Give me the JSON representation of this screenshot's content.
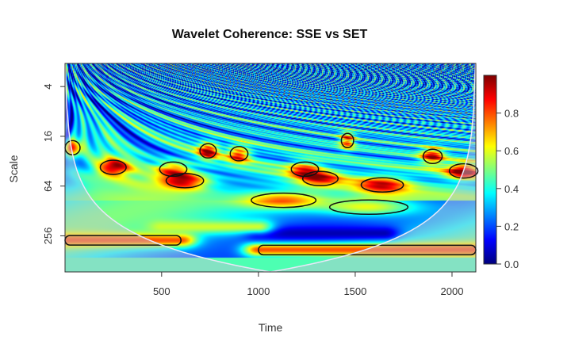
{
  "chart_data": {
    "type": "heatmap",
    "title": "Wavelet Coherence: SSE vs SET",
    "xlabel": "Time",
    "ylabel": "Scale",
    "xlim": [
      1,
      2123
    ],
    "ylim_scale": [
      2.1,
      700
    ],
    "y_scale": "log2, reversed (small scales at top)",
    "x_ticks": [
      "500",
      "1000",
      "1500",
      "2000"
    ],
    "x_tick_values": [
      500,
      1000,
      1500,
      2000
    ],
    "y_ticks": [
      "4",
      "16",
      "64",
      "256"
    ],
    "y_tick_values": [
      4,
      16,
      64,
      256
    ],
    "colorbar": {
      "range": [
        0,
        1
      ],
      "ticks": [
        "0.0",
        "0.2",
        "0.4",
        "0.6",
        "0.8"
      ],
      "tick_values": [
        0,
        0.2,
        0.4,
        0.6,
        0.8
      ],
      "colormap": "jet"
    },
    "cone_of_influence": true,
    "high_coherence_regions": [
      {
        "time": 40,
        "scale": 22,
        "value": 0.85
      },
      {
        "time": 250,
        "scale": 38,
        "value": 0.8
      },
      {
        "time": 620,
        "scale": 55,
        "value": 0.85
      },
      {
        "time": 560,
        "scale": 40,
        "value": 0.7
      },
      {
        "time": 740,
        "scale": 24,
        "value": 0.85
      },
      {
        "time": 1130,
        "scale": 95,
        "value": 0.75
      },
      {
        "time": 1240,
        "scale": 40,
        "value": 0.7
      },
      {
        "time": 1320,
        "scale": 52,
        "value": 0.72
      },
      {
        "time": 1460,
        "scale": 18,
        "value": 0.8
      },
      {
        "time": 1570,
        "scale": 115,
        "value": 0.7
      },
      {
        "time": 1640,
        "scale": 62,
        "value": 0.75
      },
      {
        "time": 1900,
        "scale": 28,
        "value": 0.85
      },
      {
        "time": 2060,
        "scale": 42,
        "value": 0.9
      },
      {
        "time": 900,
        "scale": 26,
        "value": 0.8
      }
    ],
    "bands": [
      {
        "time_range": [
          1,
          600
        ],
        "scale": 290,
        "value": 0.8
      },
      {
        "time_range": [
          1000,
          2123
        ],
        "scale": 380,
        "value": 0.8
      },
      {
        "time_range": [
          1000,
          1650
        ],
        "scale": 240,
        "value": 0.05
      },
      {
        "time_range": [
          500,
          1000
        ],
        "scale": 200,
        "value": 0.58
      }
    ]
  }
}
